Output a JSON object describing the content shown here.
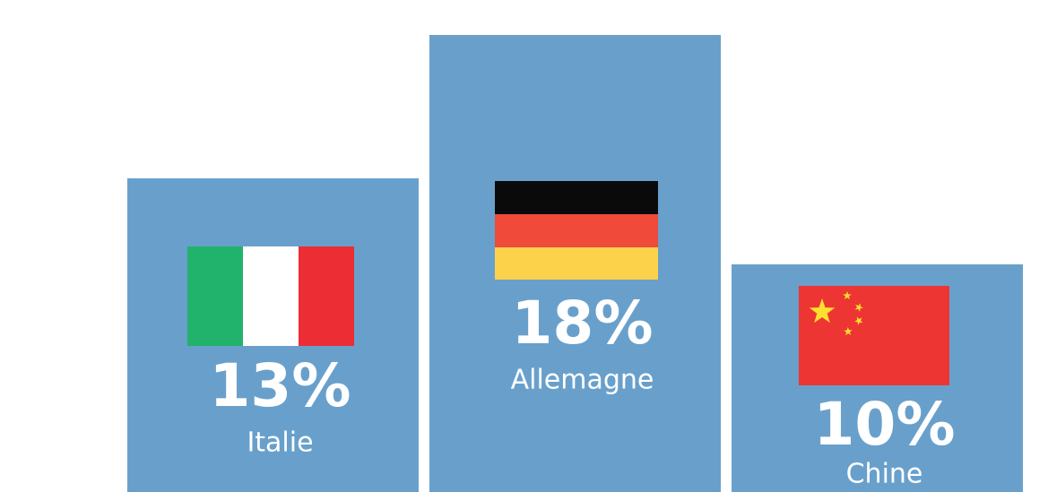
{
  "chart_data": {
    "type": "bar",
    "categories": [
      "Italie",
      "Allemagne",
      "Chine"
    ],
    "values": [
      13,
      18,
      10
    ],
    "value_labels": [
      "13%",
      "18%",
      "10%"
    ],
    "color": "#69a0cb"
  }
}
